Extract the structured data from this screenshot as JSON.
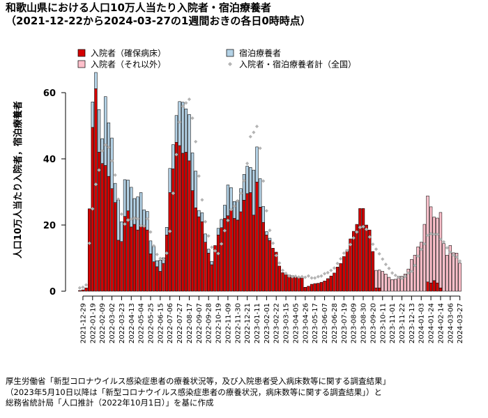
{
  "title": {
    "line1": "和歌山県における人口10万人当たり入院者・宿泊療養者",
    "line2": "（2021-12-22から2024-03-27の1週間おきの各日0時時点）"
  },
  "footer": {
    "line1": "厚生労働省「新型コロナウイルス感染症患者の療養状況等，及び入院患者受入病床数等に関する調査結果」",
    "line2": "（2023年5月10日以降は「新型コロナウイルス感染症患者の療養状況，病床数等に関する調査結果」）と",
    "line3": "総務省統計局「人口推計（2022年10月1日）」を基に作成"
  },
  "colors": {
    "hospital_severe": "#d40000",
    "hospital_other": "#ffc0cb",
    "hotel": "#b4d2e6",
    "national": "#b4b4b4"
  },
  "chart_data": {
    "type": "bar",
    "stacked": true,
    "ylabel": "人口10万人当たり入院者，宿泊療養者",
    "ylim": [
      0,
      68
    ],
    "yticks": [
      0,
      20,
      40,
      60
    ],
    "legend": {
      "position": "top",
      "items": [
        {
          "key": "hospital_severe",
          "label": "入院者（確保病床）",
          "symbol": "box"
        },
        {
          "key": "hotel",
          "label": "宿泊療養者",
          "symbol": "box"
        },
        {
          "key": "hospital_other",
          "label": "入院者（それ以外）",
          "symbol": "box"
        },
        {
          "key": "national",
          "label": "入院者・宿泊療養者計（全国）",
          "symbol": "diamond"
        }
      ]
    },
    "x": [
      "2021-12-22",
      "2021-12-29",
      "2022-01-05",
      "2022-01-12",
      "2022-01-19",
      "2022-01-26",
      "2022-02-02",
      "2022-02-09",
      "2022-02-16",
      "2022-02-23",
      "2022-03-02",
      "2022-03-09",
      "2022-03-16",
      "2022-03-23",
      "2022-03-30",
      "2022-04-06",
      "2022-04-13",
      "2022-04-20",
      "2022-04-27",
      "2022-05-04",
      "2022-05-11",
      "2022-05-18",
      "2022-05-25",
      "2022-06-01",
      "2022-06-08",
      "2022-06-15",
      "2022-06-22",
      "2022-06-29",
      "2022-07-06",
      "2022-07-13",
      "2022-07-20",
      "2022-07-27",
      "2022-08-03",
      "2022-08-10",
      "2022-08-17",
      "2022-08-24",
      "2022-08-31",
      "2022-09-07",
      "2022-09-14",
      "2022-09-21",
      "2022-09-28",
      "2022-10-05",
      "2022-10-12",
      "2022-10-19",
      "2022-10-26",
      "2022-11-02",
      "2022-11-09",
      "2022-11-16",
      "2022-11-23",
      "2022-11-30",
      "2022-12-07",
      "2022-12-14",
      "2022-12-21",
      "2022-12-28",
      "2023-01-04",
      "2023-01-11",
      "2023-01-18",
      "2023-01-25",
      "2023-02-01",
      "2023-02-08",
      "2023-02-15",
      "2023-02-22",
      "2023-03-01",
      "2023-03-08",
      "2023-03-15",
      "2023-03-22",
      "2023-03-29",
      "2023-04-05",
      "2023-04-12",
      "2023-04-19",
      "2023-04-26",
      "2023-05-03",
      "2023-05-10",
      "2023-05-17",
      "2023-05-24",
      "2023-05-31",
      "2023-06-07",
      "2023-06-14",
      "2023-06-21",
      "2023-06-28",
      "2023-07-05",
      "2023-07-12",
      "2023-07-19",
      "2023-07-26",
      "2023-08-02",
      "2023-08-09",
      "2023-08-16",
      "2023-08-23",
      "2023-08-30",
      "2023-09-06",
      "2023-09-13",
      "2023-09-20",
      "2023-09-27",
      "2023-10-04",
      "2023-10-11",
      "2023-10-18",
      "2023-10-25",
      "2023-11-01",
      "2023-11-08",
      "2023-11-15",
      "2023-11-22",
      "2023-11-29",
      "2023-12-06",
      "2023-12-13",
      "2023-12-20",
      "2023-12-27",
      "2024-01-03",
      "2024-01-10",
      "2024-01-17",
      "2024-01-24",
      "2024-01-31",
      "2024-02-07",
      "2024-02-14",
      "2024-02-21",
      "2024-02-28",
      "2024-03-06",
      "2024-03-13",
      "2024-03-20",
      "2024-03-27"
    ],
    "tick_labels": [
      "2021-12-29",
      "2022-01-19",
      "2022-02-09",
      "2022-03-02",
      "2022-03-23",
      "2022-04-13",
      "2022-05-04",
      "2022-05-25",
      "2022-06-15",
      "2022-07-06",
      "2022-07-27",
      "2022-08-17",
      "2022-09-07",
      "2022-09-28",
      "2022-10-19",
      "2022-11-09",
      "2022-11-30",
      "2022-12-21",
      "2023-01-11",
      "2023-02-01",
      "2023-02-22",
      "2023-03-15",
      "2023-04-05",
      "2023-04-26",
      "2023-05-17",
      "2023-06-07",
      "2023-06-28",
      "2023-07-19",
      "2023-08-09",
      "2023-08-30",
      "2023-09-20",
      "2023-10-11",
      "2023-11-01",
      "2023-11-22",
      "2023-12-13",
      "2024-01-03",
      "2024-01-24",
      "2024-02-14",
      "2024-03-06",
      "2024-03-27"
    ],
    "series": [
      {
        "key": "hospital_severe",
        "name": "入院者（確保病床）",
        "values": [
          0.2,
          0.4,
          1.0,
          24.9,
          49.5,
          61.2,
          42.0,
          38.6,
          38.0,
          34.7,
          31.0,
          26.8,
          15.4,
          15.0,
          22.6,
          24.3,
          19.4,
          20.2,
          18.5,
          19.8,
          19.9,
          18.5,
          11.3,
          8.9,
          7.4,
          6.0,
          8.4,
          17.0,
          29.8,
          37.0,
          45.0,
          44.0,
          41.7,
          42.0,
          39.4,
          30.4,
          25.2,
          22.5,
          21.0,
          14.8,
          11.5,
          8.0,
          13.8,
          17.0,
          19.2,
          22.0,
          22.8,
          24.8,
          22.0,
          21.5,
          24.0,
          27.5,
          29.5,
          29.8,
          23.0,
          33.0,
          25.4,
          20.8,
          17.0,
          15.3,
          13.0,
          11.8,
          7.6,
          5.6,
          5.0,
          4.9,
          4.7,
          4.3,
          4.2,
          4.0,
          1.2,
          1.5,
          2.1,
          2.3,
          2.4,
          2.7,
          3.1,
          3.8,
          4.6,
          5.5,
          7.3,
          8.4,
          10.5,
          12.5,
          15.8,
          18.1,
          20.2,
          25.0,
          25.0,
          20.0,
          18.5,
          12.0,
          1.0,
          1.0,
          0,
          0,
          0,
          0,
          0,
          0,
          0,
          0,
          0,
          0,
          0,
          0,
          0,
          0,
          2.8,
          2.5,
          3.2,
          2.5,
          1.0,
          0,
          0,
          0,
          0,
          0,
          0
        ]
      },
      {
        "key": "hospital_other",
        "name": "入院者（それ以外）",
        "values": [
          0,
          0,
          0,
          0,
          0,
          0,
          0,
          0,
          0,
          0,
          0,
          0,
          0,
          0,
          0,
          0,
          0,
          0,
          0,
          0,
          0,
          0,
          0,
          0,
          0,
          0,
          0,
          0,
          0,
          0,
          0,
          0,
          0,
          0,
          0,
          0,
          0,
          0,
          0,
          0,
          0,
          0,
          0,
          0,
          0,
          0,
          0,
          0,
          0,
          0,
          0,
          0,
          0,
          0,
          0,
          0,
          0,
          0,
          0,
          0,
          0,
          0,
          0,
          0,
          0,
          0,
          0,
          0,
          0,
          0,
          0,
          0,
          0,
          0,
          0,
          0,
          0,
          0,
          0,
          0,
          0,
          0,
          0,
          0,
          0,
          0,
          0,
          0,
          0,
          0,
          0,
          0,
          5.3,
          5.4,
          6.0,
          5.2,
          4.2,
          3.5,
          3.6,
          4.5,
          4.5,
          5.2,
          6.7,
          9.6,
          10.9,
          13.4,
          14.8,
          20.2,
          26.0,
          23.0,
          19.2,
          19.6,
          22.8,
          14.4,
          10.9,
          13.8,
          11.6,
          11.5,
          8.5
        ]
      },
      {
        "key": "hotel",
        "name": "宿泊療養者",
        "values": [
          0,
          0,
          0,
          0,
          7.7,
          4.9,
          12.9,
          7.5,
          20.8,
          16.2,
          15.3,
          5.8,
          12.1,
          6.0,
          11.1,
          9.3,
          12.0,
          7.8,
          10.0,
          10.0,
          4.7,
          5.6,
          3.9,
          4.8,
          1.8,
          3.4,
          1.7,
          2.3,
          7.3,
          7.3,
          8.1,
          13.3,
          15.4,
          13.1,
          14.0,
          11.4,
          11.1,
          1.9,
          2.7,
          2.5,
          1.2,
          1.0,
          0,
          2.0,
          2.5,
          4.0,
          9.3,
          6.5,
          5.1,
          6.0,
          7.0,
          7.8,
          8.3,
          7.6,
          13.6,
          10.6,
          8.6,
          4.8,
          1.0,
          0.7,
          0,
          0,
          0,
          0,
          0,
          0,
          0,
          0,
          0,
          0,
          0,
          0,
          0,
          0,
          0,
          0,
          0,
          0,
          0,
          0,
          0,
          0,
          0,
          0,
          0,
          0,
          0,
          0,
          0,
          0,
          0,
          0,
          0,
          0,
          0,
          0,
          0,
          0,
          0,
          0,
          0,
          0,
          0,
          0,
          0,
          0,
          0,
          0,
          0,
          0,
          0,
          0,
          0,
          0,
          0,
          0,
          0,
          0,
          0
        ]
      },
      {
        "key": "national",
        "name": "入院者・宿泊療養者計（全国）",
        "type": "scatter",
        "values": [
          1.0,
          1.2,
          1.9,
          14.5,
          24.9,
          32.3,
          36.6,
          42.4,
          44.2,
          43.5,
          39.4,
          35.1,
          27.8,
          23.3,
          20.3,
          21.5,
          21.8,
          22.1,
          21.9,
          19.8,
          19.7,
          21.9,
          17.9,
          13.7,
          11.1,
          9.9,
          9.6,
          11.5,
          18.1,
          29.6,
          41.3,
          51.1,
          55.9,
          56.9,
          58.0,
          52.3,
          45.2,
          34.8,
          27.6,
          21.0,
          16.7,
          13.3,
          12.2,
          11.4,
          14.3,
          18.3,
          21.4,
          24.7,
          25.7,
          27.3,
          29.6,
          33.4,
          38.6,
          46.7,
          48.0,
          49.8,
          43.2,
          33.3,
          24.3,
          18.4,
          14.5,
          10.8,
          8.5,
          6.3,
          5.4,
          4.6,
          4.4,
          4.5,
          4.3,
          4.4,
          4.2,
          4.6,
          4.0,
          4.0,
          4.4,
          4.6,
          5.3,
          5.6,
          6.3,
          7.0,
          8.4,
          9.8,
          11.5,
          12.3,
          14.1,
          16.1,
          17.9,
          19.3,
          19.5,
          18.7,
          16.4,
          14.2,
          12.7,
          11.3,
          9.7,
          8.1,
          6.9,
          5.5,
          4.8,
          4.2,
          3.9,
          4.5,
          5.5,
          6.0,
          7.8,
          10.6,
          12.6,
          14.3,
          16.9,
          17.4,
          17.2,
          17.2,
          15.7,
          14.9,
          13.1,
          11.8,
          10.9,
          10.3,
          9.1
        ]
      }
    ]
  }
}
